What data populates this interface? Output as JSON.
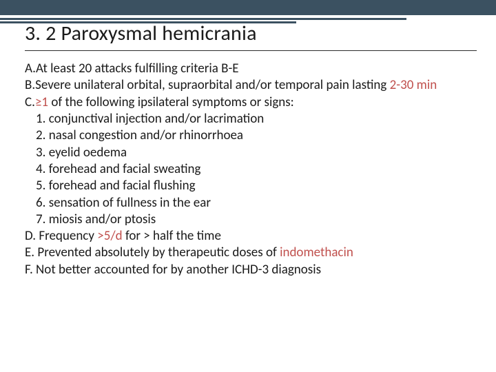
{
  "colors": {
    "header_bar": "#3b5161",
    "accent_red": "#c0504d",
    "text": "#1a1a1a",
    "background": "#ffffff"
  },
  "typography": {
    "title_fontsize": 30,
    "body_fontsize": 19,
    "title_weight": 400,
    "body_weight": 400,
    "line_height": 1.28
  },
  "title": "3. 2 Paroxysmal hemicrania",
  "criteria": {
    "A": {
      "prefix": "A.",
      "text": "At least 20 attacks fulfilling criteria B-E"
    },
    "B": {
      "prefix": "B.",
      "text_before": "Severe unilateral orbital, supraorbital and/or temporal pain lasting ",
      "highlight": "2-30 min",
      "text_after": ""
    },
    "C": {
      "prefix": "C.",
      "highlight": "≥1",
      "text_after": " of the following ipsilateral symptoms or signs:"
    },
    "C_sub": [
      {
        "n": "1.",
        "t": "conjunctival injection and/or lacrimation"
      },
      {
        "n": "2.",
        "t": "nasal congestion and/or rhinorrhoea"
      },
      {
        "n": "3.",
        "t": "eyelid oedema"
      },
      {
        "n": "4.",
        "t": "forehead and facial sweating"
      },
      {
        "n": "5.",
        "t": "forehead and facial flushing"
      },
      {
        "n": "6.",
        "t": "sensation of fullness in the ear"
      },
      {
        "n": "7.",
        "t": "miosis and/or ptosis"
      }
    ],
    "D": {
      "prefix": "D.",
      "text_before": " Frequency ",
      "highlight": ">5/d",
      "text_after": " for > half the time"
    },
    "E": {
      "prefix": "E.",
      "text_before": " Prevented absolutely by therapeutic doses of ",
      "highlight": "indomethacin",
      "text_after": ""
    },
    "F": {
      "prefix": "F.",
      "text": " Not better accounted for by another ICHD-3 diagnosis"
    }
  }
}
